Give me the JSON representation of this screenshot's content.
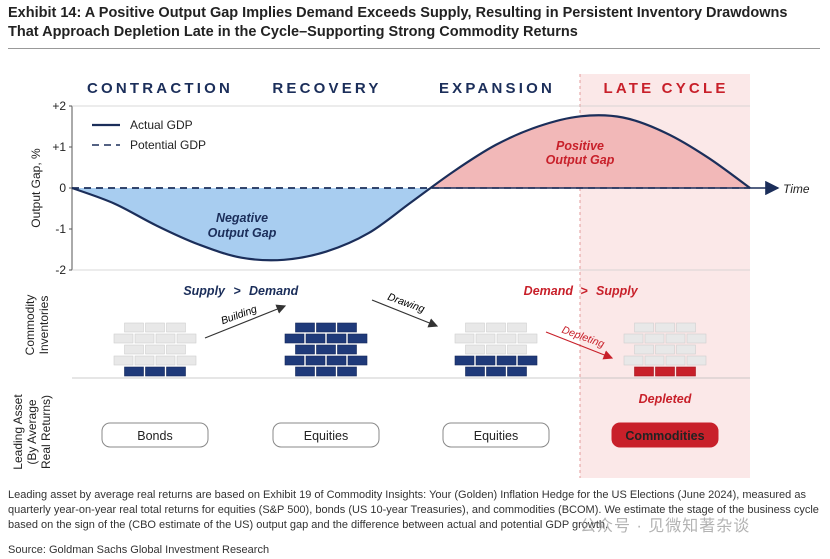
{
  "title": "Exhibit 14: A Positive Output Gap Implies Demand Exceeds Supply, Resulting in Persistent Inventory Drawdowns That Approach Depletion Late in the Cycle–Supporting Strong Commodity Returns",
  "stages": [
    "CONTRACTION",
    "RECOVERY",
    "EXPANSION",
    "LATE CYCLE"
  ],
  "chart_data": {
    "type": "line",
    "x_axis_label": "Time",
    "ylabel": "Output Gap, %",
    "y_ticks": [
      "+2",
      "+1",
      "0",
      "-1",
      "-2"
    ],
    "ylim": [
      -2,
      2
    ],
    "x": [
      0,
      1,
      2,
      3,
      4,
      5,
      6,
      7,
      8,
      9,
      10,
      11,
      12,
      13,
      14,
      15,
      16
    ],
    "series": [
      {
        "name": "Actual GDP",
        "values": [
          0,
          -0.38,
          -0.92,
          -1.38,
          -1.7,
          -1.75,
          -1.55,
          -1.1,
          -0.35,
          0.4,
          1.05,
          1.5,
          1.75,
          1.72,
          1.35,
          0.75,
          0
        ]
      },
      {
        "name": "Potential GDP",
        "values": [
          0,
          0,
          0,
          0,
          0,
          0,
          0,
          0,
          0,
          0,
          0,
          0,
          0,
          0,
          0,
          0,
          0
        ]
      }
    ],
    "annotations": {
      "negative": [
        "Negative",
        "Output Gap"
      ],
      "positive": [
        "Positive",
        "Output Gap"
      ]
    },
    "shading": {
      "negative": "#a8cdf0",
      "positive": "#f2b8b8",
      "late_cycle": "#fbe8e8"
    }
  },
  "inventories": {
    "ylabel": [
      "Commodity",
      "Inventories"
    ],
    "supply_demand_1": {
      "left": "Supply",
      "op": ">",
      "right": "Demand"
    },
    "supply_demand_2": {
      "left": "Demand",
      "op": ">",
      "right": "Supply"
    },
    "arrows": [
      "Building",
      "Drawing",
      "Depleting"
    ],
    "stack_full_rows": [
      1,
      5,
      2,
      0
    ],
    "brick_colors": {
      "full": "#1f3a7a",
      "empty": "#e8e8e8",
      "depleted": "#c8202a"
    }
  },
  "leading": {
    "ylabel": [
      "Leading Asset",
      "(By Average",
      "Real Returns)"
    ],
    "depleted_label": "Depleted",
    "assets": [
      "Bonds",
      "Equities",
      "Equities",
      "Commodities"
    ]
  },
  "colors": {
    "navy": "#1b2e5a",
    "red": "#c8202a"
  },
  "footnote": "Leading asset by average real returns are based on Exhibit 19 of Commodity Insights: Your (Golden) Inflation Hedge for the US Elections (June 2024), measured as quarterly year-on-year real total returns for equities (S&P 500), bonds (US 10-year Treasuries), and commodities (BCOM). We estimate the stage of the business cycle based on the sign of the (CBO estimate of the US) output gap and the difference between actual and potential GDP growth.",
  "source": "Source: Goldman Sachs Global Investment Research",
  "watermark": "公众号 · 见微知著杂谈"
}
